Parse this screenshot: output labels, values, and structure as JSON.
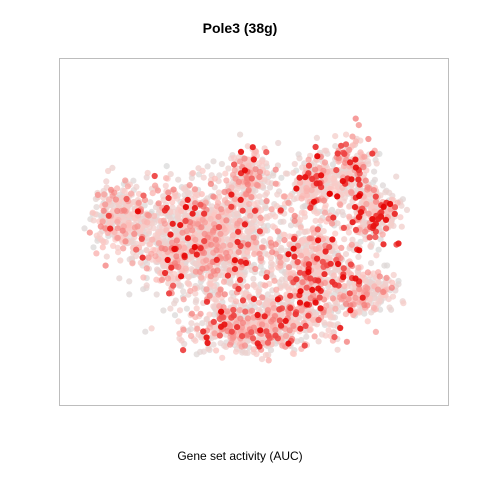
{
  "chart_data": {
    "type": "scatter",
    "title": "Pole3 (38g)",
    "xlabel": "Gene set activity (AUC)",
    "ylabel": "",
    "axes_visible": false,
    "grid": false,
    "legend": "none",
    "color_scale": {
      "low": "#d9d9d9",
      "mid": "#fcc9c5",
      "high": "#e60000",
      "meaning": "AUC"
    },
    "point_count_approx": 4000,
    "clusters": [
      {
        "name": "",
        "cx": 0.37,
        "cy": 0.52,
        "sx": 0.16,
        "sy": 0.14,
        "weight": 0.34,
        "high_frac": 0.05
      },
      {
        "name": "",
        "cx": 0.5,
        "cy": 0.78,
        "sx": 0.13,
        "sy": 0.07,
        "weight": 0.16,
        "high_frac": 0.07
      },
      {
        "name": "",
        "cx": 0.66,
        "cy": 0.62,
        "sx": 0.09,
        "sy": 0.14,
        "weight": 0.16,
        "high_frac": 0.08
      },
      {
        "name": "",
        "cx": 0.15,
        "cy": 0.45,
        "sx": 0.06,
        "sy": 0.08,
        "weight": 0.07,
        "high_frac": 0.02
      },
      {
        "name": "",
        "cx": 0.82,
        "cy": 0.44,
        "sx": 0.06,
        "sy": 0.07,
        "weight": 0.06,
        "high_frac": 0.15
      },
      {
        "name": "",
        "cx": 0.76,
        "cy": 0.32,
        "sx": 0.05,
        "sy": 0.09,
        "weight": 0.05,
        "high_frac": 0.12
      },
      {
        "name": "",
        "cx": 0.49,
        "cy": 0.33,
        "sx": 0.05,
        "sy": 0.06,
        "weight": 0.05,
        "high_frac": 0.03
      },
      {
        "name": "",
        "cx": 0.8,
        "cy": 0.68,
        "sx": 0.06,
        "sy": 0.05,
        "weight": 0.05,
        "high_frac": 0.03
      },
      {
        "name": "",
        "cx": 0.66,
        "cy": 0.35,
        "sx": 0.05,
        "sy": 0.07,
        "weight": 0.06,
        "high_frac": 0.06
      }
    ]
  }
}
